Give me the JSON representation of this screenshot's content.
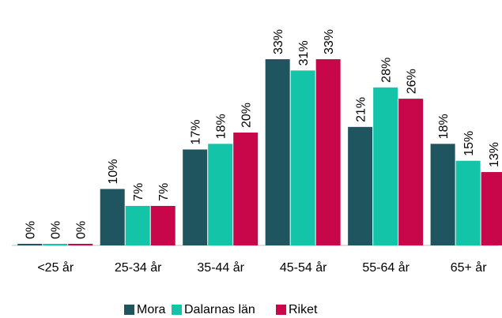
{
  "chart_data": {
    "type": "bar",
    "categories": [
      "<25 år",
      "25-34 år",
      "35-44 år",
      "45-54 år",
      "55-64 år",
      "65+ år"
    ],
    "series": [
      {
        "name": "Mora",
        "color": "#1f555e",
        "values": [
          0,
          10,
          17,
          33,
          21,
          18
        ],
        "value_labels": [
          "0%",
          "10%",
          "17%",
          "33%",
          "21%",
          "18%"
        ]
      },
      {
        "name": "Dalarnas län",
        "color": "#14c4a9",
        "values": [
          0,
          7,
          18,
          31,
          28,
          15
        ],
        "value_labels": [
          "0%",
          "7%",
          "18%",
          "31%",
          "28%",
          "15%"
        ]
      },
      {
        "name": "Riket",
        "color": "#c8074a",
        "values": [
          0,
          7,
          20,
          33,
          26,
          13
        ],
        "value_labels": [
          "0%",
          "7%",
          "20%",
          "33%",
          "26%",
          "13%"
        ]
      }
    ],
    "ylim": [
      0,
      40
    ],
    "legend": "bottom"
  }
}
